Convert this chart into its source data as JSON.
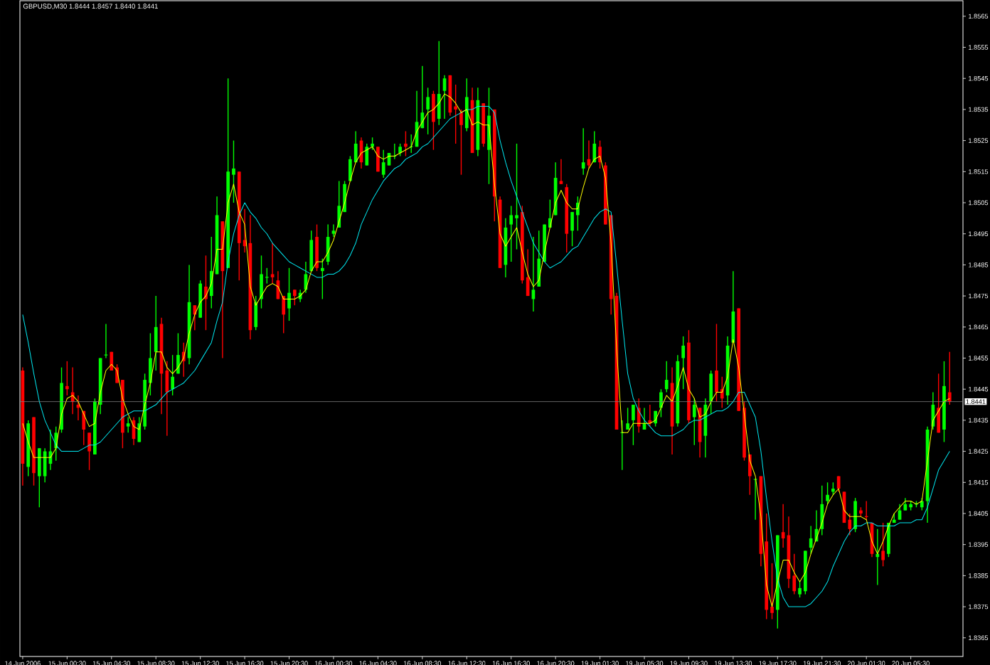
{
  "chart_data": {
    "type": "candlestick",
    "title": "GBPUSD,M30  1.8444 1.8457 1.8440 1.8441",
    "categories": [
      "14 Jun 2006",
      null,
      null,
      null,
      null,
      null,
      null,
      null,
      "15 Jun 00:30",
      null,
      null,
      null,
      null,
      null,
      null,
      null,
      "15 Jun 04:30",
      null,
      null,
      null,
      null,
      null,
      null,
      null,
      "15 Jun 08:30",
      null,
      null,
      null,
      null,
      null,
      null,
      null,
      "15 Jun 12:30",
      null,
      null,
      null,
      null,
      null,
      null,
      null,
      "15 Jun 16:30",
      null,
      null,
      null,
      null,
      null,
      null,
      null,
      "15 Jun 20:30",
      null,
      null,
      null,
      null,
      null,
      null,
      null,
      "16 Jun 00:30",
      null,
      null,
      null,
      null,
      null,
      null,
      null,
      "16 Jun 04:30",
      null,
      null,
      null,
      null,
      null,
      null,
      null,
      "16 Jun 08:30",
      null,
      null,
      null,
      null,
      null,
      null,
      null,
      "16 Jun 12:30",
      null,
      null,
      null,
      null,
      null,
      null,
      null,
      "16 Jun 16:30",
      null,
      null,
      null,
      null,
      null,
      null,
      null,
      "16 Jun 20:30",
      null,
      null,
      null,
      null,
      null,
      null,
      null,
      "19 Jun 01:30",
      null,
      null,
      null,
      null,
      null,
      null,
      null,
      "19 Jun 05:30",
      null,
      null,
      null,
      null,
      null,
      null,
      null,
      "19 Jun 09:30",
      null,
      null,
      null,
      null,
      null,
      null,
      null,
      "19 Jun 13:30",
      null,
      null,
      null,
      null,
      null,
      null,
      null,
      "19 Jun 17:30",
      null,
      null,
      null,
      null,
      null,
      null,
      null,
      "19 Jun 21:30",
      null,
      null,
      null,
      null,
      null,
      null,
      null,
      "20 Jun 01:30",
      null,
      null,
      null,
      null,
      null,
      null,
      null,
      "20 Jun 05:30",
      null,
      null,
      null,
      null,
      null,
      null,
      null
    ],
    "ylim": [
      1.8359,
      1.857
    ],
    "yticks": [
      1.8365,
      1.8375,
      1.8385,
      1.8395,
      1.8405,
      1.8415,
      1.8425,
      1.8435,
      1.8445,
      1.8455,
      1.8465,
      1.8475,
      1.8485,
      1.8495,
      1.8505,
      1.8515,
      1.8525,
      1.8535,
      1.8545,
      1.8555,
      1.8565
    ],
    "ref_lines": [
      {
        "axis": "y",
        "value": 1.8441,
        "label": "1.8441",
        "color": "#808080"
      }
    ],
    "series": [
      {
        "type": "line",
        "color": "#00e8f0",
        "values": [
          1.8469,
          1.846,
          1.845,
          1.8441,
          1.8435,
          1.8431,
          1.8427,
          1.8425,
          1.8425,
          1.8425,
          1.8425,
          1.8426,
          1.8427,
          1.8427,
          1.8428,
          1.843,
          1.8432,
          1.8434,
          1.8436,
          1.8437,
          1.8438,
          1.8438,
          1.8438,
          1.8439,
          1.844,
          1.8442,
          1.8444,
          1.8445,
          1.8446,
          1.8447,
          1.8449,
          1.8451,
          1.8454,
          1.8457,
          1.846,
          1.8467,
          1.8473,
          1.8486,
          1.8495,
          1.8501,
          1.8505,
          1.8502,
          1.85,
          1.8497,
          1.8495,
          1.8492,
          1.849,
          1.8488,
          1.8486,
          1.8485,
          1.8484,
          1.8483,
          1.8482,
          1.8481,
          1.8481,
          1.8482,
          1.8482,
          1.8483,
          1.8485,
          1.8488,
          1.8492,
          1.8498,
          1.8502,
          1.8506,
          1.8509,
          1.8512,
          1.8514,
          1.8516,
          1.8517,
          1.8519,
          1.852,
          1.8521,
          1.8523,
          1.8524,
          1.8526,
          1.8528,
          1.853,
          1.8532,
          1.8533,
          1.8534,
          1.8535,
          1.8535,
          1.8536,
          1.8536,
          1.8536,
          1.8534,
          1.8525,
          1.8518,
          1.8512,
          1.8507,
          1.8502,
          1.8497,
          1.8492,
          1.8489,
          1.8486,
          1.8484,
          1.8485,
          1.8486,
          1.8488,
          1.849,
          1.8491,
          1.8494,
          1.8497,
          1.85,
          1.8502,
          1.8503,
          1.8502,
          1.8485,
          1.8467,
          1.845,
          1.8442,
          1.8438,
          1.8435,
          1.8433,
          1.8431,
          1.843,
          1.843,
          1.843,
          1.8431,
          1.8432,
          1.8434,
          1.8435,
          1.8435,
          1.8436,
          1.8437,
          1.8438,
          1.8438,
          1.8439,
          1.8441,
          1.8444,
          1.8444,
          1.844,
          1.8436,
          1.8425,
          1.841,
          1.8396,
          1.8384,
          1.8378,
          1.8375,
          1.8375,
          1.8375,
          1.8375,
          1.8376,
          1.8378,
          1.838,
          1.8383,
          1.8388,
          1.8392,
          1.8396,
          1.8399,
          1.8401,
          1.8401,
          1.8402,
          1.8402,
          1.8401,
          1.8401,
          1.8401,
          1.8401,
          1.8402,
          1.8402,
          1.8402,
          1.8403,
          1.8403,
          1.8407,
          1.8413,
          1.8419,
          1.8422,
          1.8425
        ]
      },
      {
        "type": "line",
        "color": "#ffff00",
        "values": [
          1.8434,
          1.8428,
          1.8423,
          1.8423,
          1.8423,
          1.8423,
          1.8426,
          1.8437,
          1.8442,
          1.8443,
          1.8441,
          1.8437,
          1.8433,
          1.8434,
          1.8444,
          1.8451,
          1.8453,
          1.8451,
          1.8442,
          1.8437,
          1.8433,
          1.8432,
          1.844,
          1.8447,
          1.8457,
          1.8457,
          1.8452,
          1.845,
          1.8452,
          1.8455,
          1.8463,
          1.8469,
          1.8473,
          1.8475,
          1.8479,
          1.849,
          1.849,
          1.8505,
          1.8511,
          1.8502,
          1.8498,
          1.8478,
          1.8472,
          1.8475,
          1.8478,
          1.8479,
          1.8478,
          1.8474,
          1.8474,
          1.8474,
          1.8475,
          1.8477,
          1.8483,
          1.8486,
          1.8486,
          1.8489,
          1.8493,
          1.8499,
          1.8505,
          1.8512,
          1.8518,
          1.8521,
          1.8522,
          1.8523,
          1.852,
          1.8519,
          1.852,
          1.852,
          1.8521,
          1.8522,
          1.8523,
          1.8528,
          1.8531,
          1.8534,
          1.8535,
          1.8537,
          1.854,
          1.8539,
          1.8537,
          1.8534,
          1.8535,
          1.853,
          1.8531,
          1.853,
          1.853,
          1.8511,
          1.8495,
          1.8491,
          1.8494,
          1.8497,
          1.8489,
          1.8482,
          1.8478,
          1.848,
          1.8489,
          1.8497,
          1.8505,
          1.8509,
          1.8505,
          1.8503,
          1.8503,
          1.851,
          1.8516,
          1.8519,
          1.852,
          1.8513,
          1.8492,
          1.8458,
          1.8431,
          1.8431,
          1.8434,
          1.8434,
          1.8434,
          1.8434,
          1.8435,
          1.8439,
          1.8443,
          1.8441,
          1.8446,
          1.8452,
          1.8445,
          1.8442,
          1.8436,
          1.8437,
          1.8441,
          1.8444,
          1.8444,
          1.8449,
          1.8461,
          1.8452,
          1.8437,
          1.8422,
          1.8417,
          1.8404,
          1.8382,
          1.8375,
          1.8383,
          1.839,
          1.839,
          1.8386,
          1.8383,
          1.8386,
          1.8392,
          1.8397,
          1.8402,
          1.8408,
          1.8411,
          1.8413,
          1.8406,
          1.8404,
          1.8404,
          1.8404,
          1.8403,
          1.8396,
          1.8392,
          1.8396,
          1.8401,
          1.8405,
          1.8407,
          1.8409,
          1.8409,
          1.8408,
          1.8409,
          1.8422,
          1.8435,
          1.8438,
          1.8441,
          1.8442
        ]
      },
      {
        "type": "candlestick",
        "colors": [
          "#ff0000",
          "#00ff00",
          "#ff0000",
          "#00ff00",
          "#00ff00",
          "#00ff00",
          "#00ff00",
          "#00ff00",
          "#ff0000",
          "#ff0000",
          "#ff0000",
          "#ff0000",
          "#ff0000",
          "#00ff00",
          "#00ff00",
          "#00ff00",
          "#ff0000",
          "#ff0000",
          "#ff0000",
          "#00ff00",
          "#ff0000",
          "#00ff00",
          "#00ff00",
          "#00ff00",
          "#00ff00",
          "#ff0000",
          "#ff0000",
          "#00ff00",
          "#00ff00",
          "#ff0000",
          "#00ff00",
          "#ff0000",
          "#00ff00",
          "#ff0000",
          "#00ff00",
          "#00ff00",
          "#ff0000",
          "#00ff00",
          "#00ff00",
          "#ff0000",
          "#ff0000",
          "#ff0000",
          "#00ff00",
          "#00ff00",
          "#00ff00",
          "#ff0000",
          "#ff0000",
          "#ff0000",
          "#00ff00",
          "#ff0000",
          "#00ff00",
          "#00ff00",
          "#00ff00",
          "#ff0000",
          "#00ff00",
          "#00ff00",
          "#00ff00",
          "#00ff00",
          "#00ff00",
          "#00ff00",
          "#00ff00",
          "#ff0000",
          "#00ff00",
          "#00ff00",
          "#ff0000",
          "#00ff00",
          "#00ff00",
          "#00ff00",
          "#00ff00",
          "#ff0000",
          "#00ff00",
          "#00ff00",
          "#00ff00",
          "#00ff00",
          "#ff0000",
          "#00ff00",
          "#00ff00",
          "#ff0000",
          "#ff0000",
          "#ff0000",
          "#00ff00",
          "#ff0000",
          "#00ff00",
          "#ff0000",
          "#00ff00",
          "#ff0000",
          "#ff0000",
          "#00ff00",
          "#00ff00",
          "#00ff00",
          "#ff0000",
          "#ff0000",
          "#00ff00",
          "#00ff00",
          "#00ff00",
          "#00ff00",
          "#00ff00",
          "#ff0000",
          "#ff0000",
          "#00ff00",
          "#00ff00",
          "#00ff00",
          "#ff0000",
          "#00ff00",
          "#ff0000",
          "#ff0000",
          "#ff0000",
          "#ff0000",
          "#00ff00",
          "#00ff00",
          "#00ff00",
          "#ff0000",
          "#00ff00",
          "#ff0000",
          "#00ff00",
          "#00ff00",
          "#00ff00",
          "#ff0000",
          "#00ff00",
          "#00ff00",
          "#ff0000",
          "#00ff00",
          "#ff0000",
          "#00ff00",
          "#00ff00",
          "#ff0000",
          "#ff0000",
          "#00ff00",
          "#00ff00",
          "#ff0000",
          "#ff0000",
          "#ff0000",
          "#00ff00",
          "#ff0000",
          "#ff0000",
          "#ff0000",
          "#00ff00",
          "#ff0000",
          "#ff0000",
          "#ff0000",
          "#00ff00",
          "#00ff00",
          "#00ff00",
          "#00ff00",
          "#00ff00",
          "#00ff00",
          "#00ff00",
          "#ff0000",
          "#ff0000",
          "#ff0000",
          "#00ff00",
          "#ff0000",
          "#ff0000",
          "#ff0000",
          "#00ff00",
          "#ff0000",
          "#00ff00",
          "#00ff00",
          "#00ff00",
          "#00ff00",
          "#00ff00",
          "#00ff00",
          "#00ff00",
          "#00ff00",
          "#00ff00",
          "#ff0000",
          "#00ff00",
          "#ff0000"
        ],
        "ohlc": [
          [
            1.8451,
            1.8452,
            1.8414,
            1.8421
          ],
          [
            1.842,
            1.8435,
            1.8417,
            1.8434
          ],
          [
            1.8436,
            1.8436,
            1.8414,
            1.8418
          ],
          [
            1.8417,
            1.8426,
            1.8407,
            1.8426
          ],
          [
            1.8417,
            1.8426,
            1.8415,
            1.8425
          ],
          [
            1.8421,
            1.8432,
            1.8419,
            1.8425
          ],
          [
            1.8426,
            1.8433,
            1.8422,
            1.8431
          ],
          [
            1.8432,
            1.8452,
            1.8431,
            1.8447
          ],
          [
            1.8446,
            1.8454,
            1.8443,
            1.8445
          ],
          [
            1.8444,
            1.8452,
            1.8437,
            1.8441
          ],
          [
            1.844,
            1.8443,
            1.8435,
            1.8439
          ],
          [
            1.8438,
            1.8438,
            1.8427,
            1.8432
          ],
          [
            1.8431,
            1.8431,
            1.8419,
            1.8425
          ],
          [
            1.8424,
            1.8442,
            1.8424,
            1.8441
          ],
          [
            1.844,
            1.8455,
            1.8437,
            1.8455
          ],
          [
            1.8456,
            1.8466,
            1.8455,
            1.8456
          ],
          [
            1.8457,
            1.8457,
            1.8451,
            1.8451
          ],
          [
            1.8452,
            1.8453,
            1.8447,
            1.8447
          ],
          [
            1.8448,
            1.8448,
            1.8426,
            1.8431
          ],
          [
            1.8433,
            1.8436,
            1.8431,
            1.8434
          ],
          [
            1.8435,
            1.8436,
            1.8427,
            1.8429
          ],
          [
            1.8428,
            1.8436,
            1.8428,
            1.8434
          ],
          [
            1.8433,
            1.845,
            1.8432,
            1.8448
          ],
          [
            1.8447,
            1.8463,
            1.8443,
            1.8455
          ],
          [
            1.8457,
            1.8475,
            1.8451,
            1.8465
          ],
          [
            1.8466,
            1.8468,
            1.8437,
            1.845
          ],
          [
            1.8451,
            1.8454,
            1.843,
            1.8444
          ],
          [
            1.8445,
            1.8456,
            1.8443,
            1.8449
          ],
          [
            1.845,
            1.8463,
            1.845,
            1.8456
          ],
          [
            1.8457,
            1.846,
            1.8449,
            1.8454
          ],
          [
            1.8455,
            1.8485,
            1.8453,
            1.8473
          ],
          [
            1.8472,
            1.8472,
            1.8464,
            1.8469
          ],
          [
            1.8468,
            1.848,
            1.8468,
            1.8479
          ],
          [
            1.8478,
            1.8488,
            1.8464,
            1.8474
          ],
          [
            1.8475,
            1.8494,
            1.8471,
            1.8483
          ],
          [
            1.8482,
            1.8507,
            1.8482,
            1.8501
          ],
          [
            1.8499,
            1.8499,
            1.8455,
            1.8483
          ],
          [
            1.8484,
            1.8545,
            1.8484,
            1.8515
          ],
          [
            1.8514,
            1.8525,
            1.8505,
            1.8516
          ],
          [
            1.8515,
            1.8515,
            1.848,
            1.8492
          ],
          [
            1.8493,
            1.8503,
            1.8489,
            1.8491
          ],
          [
            1.8492,
            1.8501,
            1.8461,
            1.8464
          ],
          [
            1.8465,
            1.8475,
            1.8464,
            1.8473
          ],
          [
            1.8474,
            1.8488,
            1.8471,
            1.8482
          ],
          [
            1.8481,
            1.8484,
            1.8479,
            1.8481
          ],
          [
            1.8482,
            1.8492,
            1.8479,
            1.8481
          ],
          [
            1.848,
            1.8483,
            1.8474,
            1.8474
          ],
          [
            1.8475,
            1.8475,
            1.8463,
            1.8469
          ],
          [
            1.8471,
            1.8484,
            1.8467,
            1.8476
          ],
          [
            1.8477,
            1.8477,
            1.8472,
            1.8475
          ],
          [
            1.8474,
            1.8477,
            1.8473,
            1.8476
          ],
          [
            1.8477,
            1.8486,
            1.8476,
            1.8482
          ],
          [
            1.8483,
            1.8496,
            1.8483,
            1.8493
          ],
          [
            1.8494,
            1.8498,
            1.8483,
            1.8484
          ],
          [
            1.8483,
            1.8487,
            1.8474,
            1.8484
          ],
          [
            1.8486,
            1.8498,
            1.8485,
            1.8494
          ],
          [
            1.8495,
            1.8498,
            1.8494,
            1.8496
          ],
          [
            1.8497,
            1.8512,
            1.8497,
            1.8504
          ],
          [
            1.8502,
            1.8512,
            1.8502,
            1.8511
          ],
          [
            1.8512,
            1.852,
            1.8512,
            1.8519
          ],
          [
            1.8518,
            1.8528,
            1.8518,
            1.8524
          ],
          [
            1.8525,
            1.8526,
            1.8516,
            1.8518
          ],
          [
            1.8517,
            1.8524,
            1.8517,
            1.8523
          ],
          [
            1.8523,
            1.8526,
            1.8522,
            1.8524
          ],
          [
            1.8523,
            1.8523,
            1.8515,
            1.8515
          ],
          [
            1.8514,
            1.8522,
            1.8513,
            1.8518
          ],
          [
            1.8517,
            1.8521,
            1.8517,
            1.8521
          ],
          [
            1.852,
            1.8524,
            1.8519,
            1.852
          ],
          [
            1.8521,
            1.8524,
            1.852,
            1.8523
          ],
          [
            1.8524,
            1.8528,
            1.852,
            1.8523
          ],
          [
            1.8523,
            1.8527,
            1.8521,
            1.8523
          ],
          [
            1.8523,
            1.8541,
            1.8523,
            1.8531
          ],
          [
            1.8529,
            1.8549,
            1.8529,
            1.8534
          ],
          [
            1.8535,
            1.8542,
            1.8527,
            1.8539
          ],
          [
            1.854,
            1.8541,
            1.8522,
            1.8531
          ],
          [
            1.8532,
            1.8557,
            1.853,
            1.854
          ],
          [
            1.8541,
            1.8546,
            1.8532,
            1.8545
          ],
          [
            1.8546,
            1.8546,
            1.8533,
            1.8534
          ],
          [
            1.8536,
            1.8543,
            1.8524,
            1.8535
          ],
          [
            1.8534,
            1.8535,
            1.8514,
            1.853
          ],
          [
            1.8529,
            1.8545,
            1.8528,
            1.8539
          ],
          [
            1.8538,
            1.8542,
            1.8521,
            1.8521
          ],
          [
            1.8522,
            1.8542,
            1.852,
            1.8538
          ],
          [
            1.8537,
            1.8537,
            1.8523,
            1.8524
          ],
          [
            1.8522,
            1.8542,
            1.8511,
            1.8533
          ],
          [
            1.8535,
            1.8535,
            1.8499,
            1.8507
          ],
          [
            1.8506,
            1.8507,
            1.8484,
            1.8484
          ],
          [
            1.8485,
            1.85,
            1.8481,
            1.8497
          ],
          [
            1.8498,
            1.8504,
            1.8486,
            1.8501
          ],
          [
            1.85,
            1.8524,
            1.849,
            1.8501
          ],
          [
            1.8502,
            1.8504,
            1.8479,
            1.848
          ],
          [
            1.8481,
            1.849,
            1.8475,
            1.8475
          ],
          [
            1.8474,
            1.8494,
            1.847,
            1.8477
          ],
          [
            1.8478,
            1.8496,
            1.8478,
            1.8487
          ],
          [
            1.8486,
            1.8498,
            1.8486,
            1.8498
          ],
          [
            1.8497,
            1.8506,
            1.8497,
            1.85
          ],
          [
            1.8501,
            1.8518,
            1.8501,
            1.8513
          ],
          [
            1.8512,
            1.8519,
            1.8511,
            1.8511
          ],
          [
            1.851,
            1.8511,
            1.8489,
            1.8495
          ],
          [
            1.8496,
            1.8502,
            1.8491,
            1.8502
          ],
          [
            1.8501,
            1.8507,
            1.8496,
            1.8505
          ],
          [
            1.8516,
            1.8529,
            1.8514,
            1.8518
          ],
          [
            1.8519,
            1.8525,
            1.8516,
            1.8517
          ],
          [
            1.8518,
            1.8528,
            1.8518,
            1.8524
          ],
          [
            1.8523,
            1.8525,
            1.8516,
            1.8518
          ],
          [
            1.8517,
            1.8518,
            1.8498,
            1.8498
          ],
          [
            1.8501,
            1.8501,
            1.8469,
            1.8474
          ],
          [
            1.8475,
            1.8476,
            1.8432,
            1.8432
          ],
          [
            1.8431,
            1.8435,
            1.8419,
            1.8431
          ],
          [
            1.8432,
            1.8439,
            1.8432,
            1.8434
          ],
          [
            1.8435,
            1.844,
            1.8427,
            1.844
          ],
          [
            1.8439,
            1.8442,
            1.8431,
            1.8433
          ],
          [
            1.8432,
            1.8439,
            1.8432,
            1.8434
          ],
          [
            1.8435,
            1.844,
            1.8433,
            1.8434
          ],
          [
            1.8434,
            1.8438,
            1.8433,
            1.8438
          ],
          [
            1.8439,
            1.8445,
            1.8436,
            1.8444
          ],
          [
            1.8445,
            1.8454,
            1.8444,
            1.8448
          ],
          [
            1.8447,
            1.8452,
            1.8424,
            1.8433
          ],
          [
            1.8434,
            1.8456,
            1.8433,
            1.8454
          ],
          [
            1.8455,
            1.8462,
            1.8445,
            1.8459
          ],
          [
            1.846,
            1.8464,
            1.8434,
            1.8435
          ],
          [
            1.8436,
            1.8442,
            1.8427,
            1.844
          ],
          [
            1.8439,
            1.8439,
            1.8423,
            1.8428
          ],
          [
            1.843,
            1.8442,
            1.8423,
            1.844
          ],
          [
            1.8441,
            1.8451,
            1.8437,
            1.845
          ],
          [
            1.8451,
            1.8466,
            1.8441,
            1.8444
          ],
          [
            1.8445,
            1.8449,
            1.8439,
            1.8442
          ],
          [
            1.8443,
            1.8462,
            1.844,
            1.8459
          ],
          [
            1.846,
            1.8483,
            1.846,
            1.847
          ],
          [
            1.8471,
            1.8471,
            1.8438,
            1.8438
          ],
          [
            1.8439,
            1.8441,
            1.8422,
            1.8423
          ],
          [
            1.8424,
            1.8424,
            1.8411,
            1.8417
          ],
          [
            1.8416,
            1.8416,
            1.8403,
            1.8416
          ],
          [
            1.8417,
            1.8417,
            1.8388,
            1.8392
          ],
          [
            1.8396,
            1.8405,
            1.8371,
            1.8374
          ],
          [
            1.8375,
            1.8389,
            1.8371,
            1.8373
          ],
          [
            1.8374,
            1.8398,
            1.8368,
            1.8398
          ],
          [
            1.8399,
            1.8408,
            1.8394,
            1.8397
          ],
          [
            1.8398,
            1.8404,
            1.8381,
            1.8384
          ],
          [
            1.8385,
            1.8392,
            1.8379,
            1.838
          ],
          [
            1.8379,
            1.8383,
            1.8378,
            1.8381
          ],
          [
            1.838,
            1.8393,
            1.8379,
            1.8393
          ],
          [
            1.8394,
            1.8401,
            1.8392,
            1.8397
          ],
          [
            1.8396,
            1.8406,
            1.8396,
            1.84
          ],
          [
            1.84,
            1.8414,
            1.8398,
            1.8408
          ],
          [
            1.8409,
            1.8415,
            1.8408,
            1.8411
          ],
          [
            1.8412,
            1.8415,
            1.8411,
            1.8413
          ],
          [
            1.8417,
            1.8417,
            1.8412,
            1.8413
          ],
          [
            1.8412,
            1.8412,
            1.8402,
            1.8402
          ],
          [
            1.8403,
            1.8405,
            1.8398,
            1.84
          ],
          [
            1.84,
            1.841,
            1.8399,
            1.8409
          ],
          [
            1.8406,
            1.8407,
            1.8404,
            1.8405
          ],
          [
            1.8404,
            1.8409,
            1.8403,
            1.8404
          ],
          [
            1.8402,
            1.8402,
            1.8391,
            1.8392
          ],
          [
            1.8391,
            1.84,
            1.8382,
            1.8392
          ],
          [
            1.8393,
            1.8402,
            1.8388,
            1.839
          ],
          [
            1.8392,
            1.8402,
            1.8391,
            1.8402
          ],
          [
            1.8402,
            1.8405,
            1.8402,
            1.8403
          ],
          [
            1.8403,
            1.8408,
            1.8403,
            1.8406
          ],
          [
            1.8406,
            1.841,
            1.8406,
            1.8408
          ],
          [
            1.8407,
            1.8409,
            1.8406,
            1.8408
          ],
          [
            1.8408,
            1.8409,
            1.8407,
            1.8408
          ],
          [
            1.8407,
            1.841,
            1.8406,
            1.8409
          ],
          [
            1.8409,
            1.8433,
            1.8402,
            1.8432
          ],
          [
            1.8433,
            1.8444,
            1.8432,
            1.844
          ],
          [
            1.8439,
            1.845,
            1.8431,
            1.8431
          ],
          [
            1.8432,
            1.8454,
            1.8428,
            1.8446
          ],
          [
            1.8444,
            1.8457,
            1.844,
            1.8441
          ]
        ]
      }
    ]
  }
}
